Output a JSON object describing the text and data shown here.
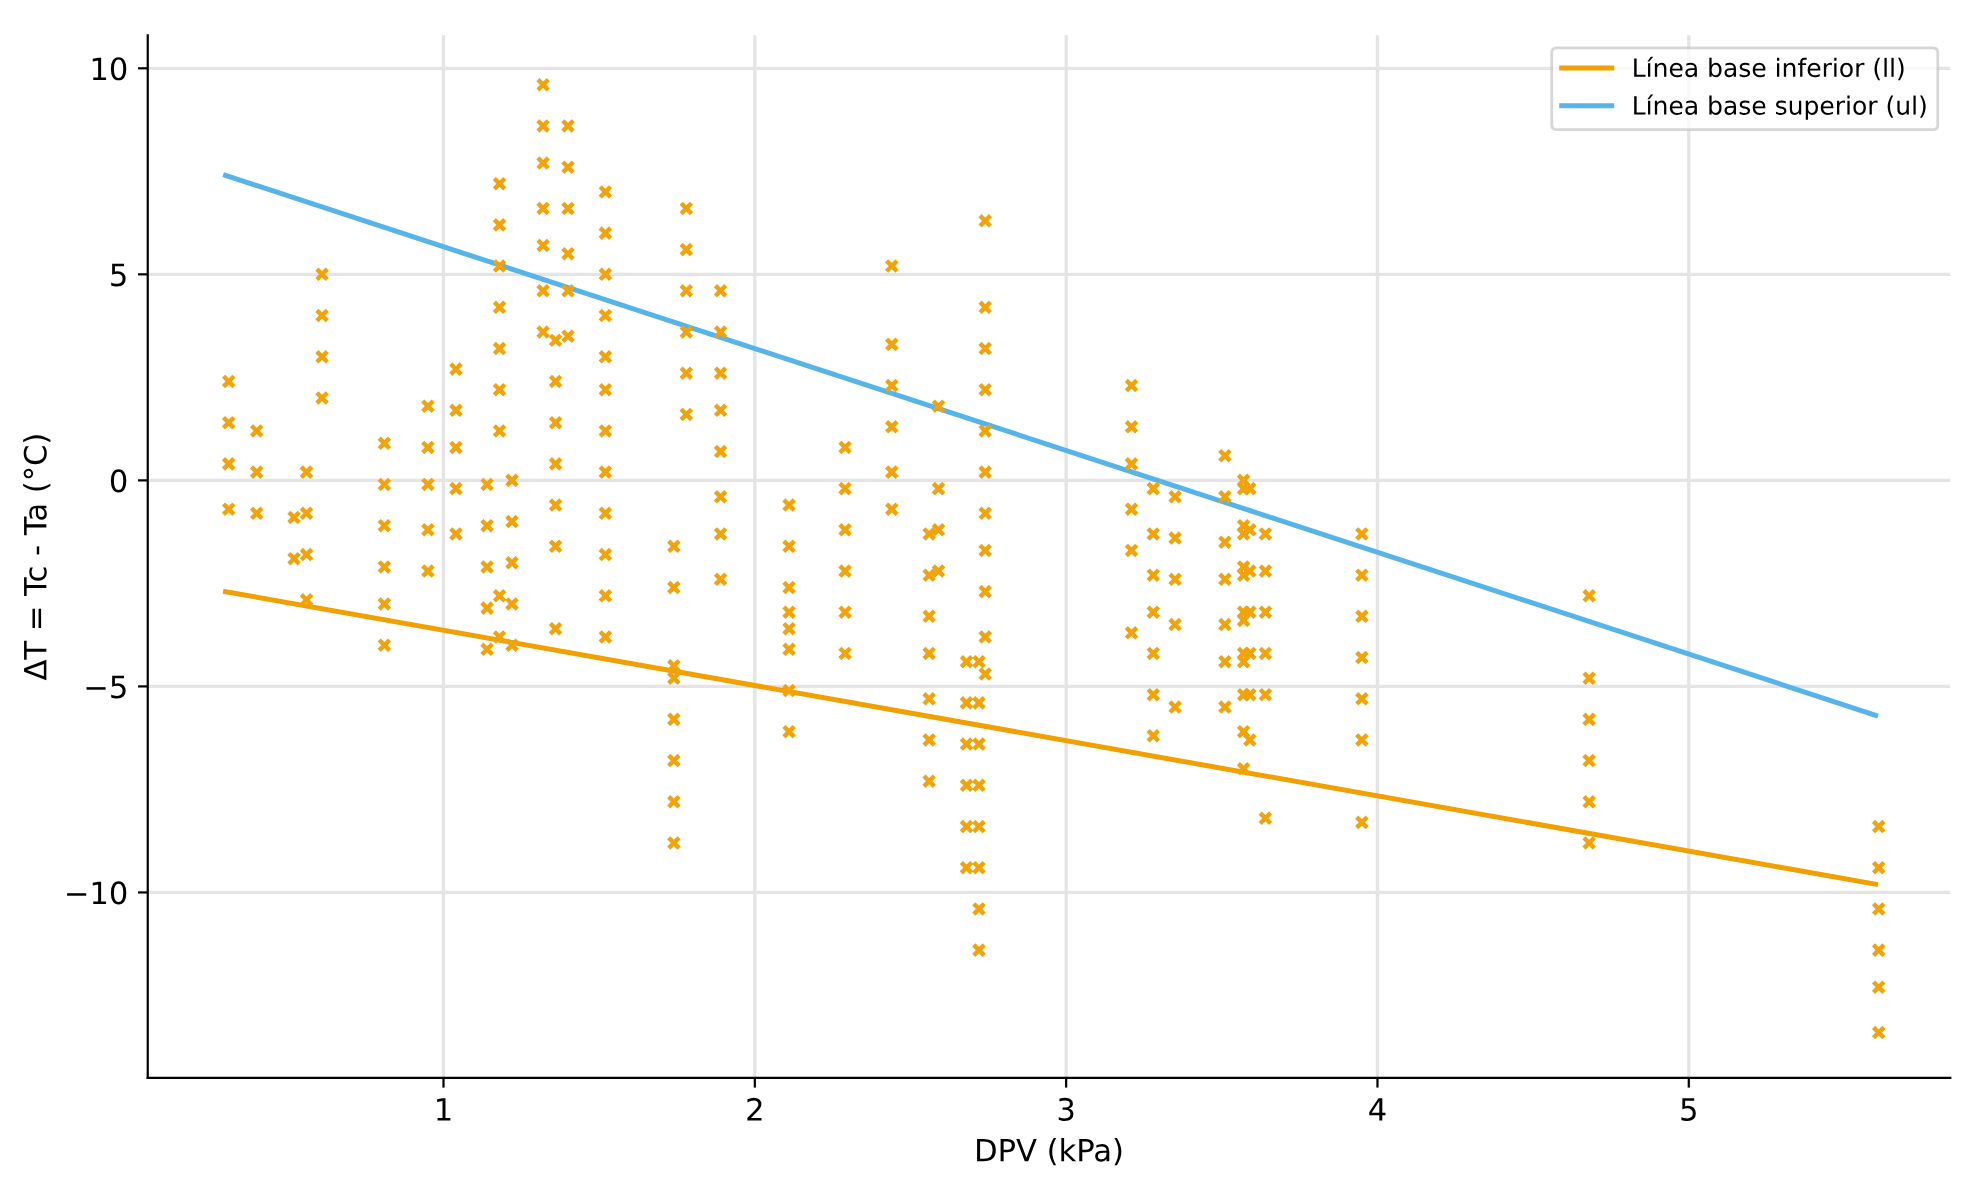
{
  "chart_data": {
    "type": "scatter",
    "xlabel": "DPV (kPa)",
    "ylabel": "ΔT = Tc - Ta (°C)",
    "xlim": [
      0.05,
      5.84
    ],
    "ylim": [
      -14.5,
      10.8
    ],
    "xticks": [
      1,
      2,
      3,
      4,
      5
    ],
    "yticks": [
      {
        "value": -10,
        "label": "−10"
      },
      {
        "value": -5,
        "label": "−5"
      },
      0,
      5,
      10
    ],
    "grid": true,
    "legend": "top right",
    "series": [
      {
        "marker": "cross",
        "color": "#f0a30a",
        "x": [
          0.31,
          0.31,
          0.31,
          0.31,
          0.4,
          0.4,
          0.4,
          0.52,
          0.52,
          0.56,
          0.56,
          0.56,
          0.56,
          0.61,
          0.61,
          0.61,
          0.61,
          0.81,
          0.81,
          0.81,
          0.81,
          0.81,
          0.81,
          0.95,
          0.95,
          0.95,
          0.95,
          0.95,
          1.04,
          1.04,
          1.04,
          1.04,
          1.04,
          1.14,
          1.14,
          1.14,
          1.14,
          1.14,
          1.18,
          1.18,
          1.18,
          1.18,
          1.18,
          1.18,
          1.18,
          1.18,
          1.18,
          1.22,
          1.22,
          1.22,
          1.22,
          1.22,
          1.32,
          1.32,
          1.32,
          1.32,
          1.32,
          1.32,
          1.32,
          1.36,
          1.36,
          1.36,
          1.36,
          1.36,
          1.36,
          1.36,
          1.4,
          1.4,
          1.4,
          1.4,
          1.4,
          1.4,
          1.52,
          1.52,
          1.52,
          1.52,
          1.52,
          1.52,
          1.52,
          1.52,
          1.52,
          1.52,
          1.52,
          1.52,
          1.74,
          1.74,
          1.74,
          1.74,
          1.74,
          1.74,
          1.74,
          1.74,
          1.78,
          1.78,
          1.78,
          1.78,
          1.78,
          1.78,
          1.89,
          1.89,
          1.89,
          1.89,
          1.89,
          1.89,
          1.89,
          1.89,
          2.11,
          2.11,
          2.11,
          2.11,
          2.11,
          2.11,
          2.11,
          2.11,
          2.29,
          2.29,
          2.29,
          2.29,
          2.29,
          2.29,
          2.44,
          2.44,
          2.44,
          2.44,
          2.44,
          2.44,
          2.56,
          2.56,
          2.56,
          2.56,
          2.56,
          2.56,
          2.56,
          2.59,
          2.59,
          2.59,
          2.59,
          2.68,
          2.68,
          2.68,
          2.68,
          2.68,
          2.68,
          2.72,
          2.72,
          2.72,
          2.72,
          2.72,
          2.72,
          2.72,
          2.72,
          2.74,
          2.74,
          2.74,
          2.74,
          2.74,
          2.74,
          2.74,
          2.74,
          2.74,
          2.74,
          2.74,
          3.21,
          3.21,
          3.21,
          3.21,
          3.21,
          3.21,
          3.28,
          3.28,
          3.28,
          3.28,
          3.28,
          3.28,
          3.28,
          3.35,
          3.35,
          3.35,
          3.35,
          3.35,
          3.51,
          3.51,
          3.51,
          3.51,
          3.51,
          3.51,
          3.51,
          3.57,
          3.57,
          3.57,
          3.57,
          3.57,
          3.57,
          3.57,
          3.57,
          3.57,
          3.57,
          3.57,
          3.57,
          3.57,
          3.59,
          3.59,
          3.59,
          3.59,
          3.59,
          3.59,
          3.59,
          3.64,
          3.64,
          3.64,
          3.64,
          3.64,
          3.64,
          3.95,
          3.95,
          3.95,
          3.95,
          3.95,
          3.95,
          3.95,
          4.68,
          4.68,
          4.68,
          4.68,
          4.68,
          4.68,
          5.61,
          5.61,
          5.61,
          5.61,
          5.61,
          5.61
        ],
        "values": [
          2.4,
          1.4,
          0.4,
          -0.7,
          1.2,
          0.2,
          -0.8,
          -0.9,
          -1.9,
          0.2,
          -0.8,
          -1.8,
          -2.9,
          5.0,
          4.0,
          3.0,
          2.0,
          0.9,
          -0.1,
          -1.1,
          -2.1,
          -3.0,
          -4.0,
          1.8,
          0.8,
          -0.1,
          -1.2,
          -2.2,
          2.7,
          1.7,
          0.8,
          -0.2,
          -1.3,
          -0.1,
          -1.1,
          -2.1,
          -3.1,
          -4.1,
          7.2,
          6.2,
          5.2,
          4.2,
          3.2,
          2.2,
          1.2,
          -2.8,
          -3.8,
          0.0,
          -1.0,
          -2.0,
          -3.0,
          -4.0,
          9.6,
          8.6,
          7.7,
          6.6,
          5.7,
          4.6,
          3.6,
          3.4,
          2.4,
          1.4,
          0.4,
          -0.6,
          -1.6,
          -3.6,
          8.6,
          7.6,
          6.6,
          5.5,
          4.6,
          3.5,
          7.0,
          6.0,
          5.0,
          4.0,
          3.0,
          2.2,
          1.2,
          0.2,
          -0.8,
          -1.8,
          -2.8,
          -3.8,
          -1.6,
          -2.6,
          -4.5,
          -4.8,
          -5.8,
          -6.8,
          -7.8,
          -8.8,
          6.6,
          5.6,
          4.6,
          3.6,
          2.6,
          1.6,
          4.6,
          3.6,
          2.6,
          1.7,
          0.7,
          -0.4,
          -1.3,
          -2.4,
          -0.6,
          -1.6,
          -2.6,
          -3.2,
          -3.6,
          -4.1,
          -5.1,
          -6.1,
          0.8,
          -0.2,
          -1.2,
          -2.2,
          -3.2,
          -4.2,
          5.2,
          3.3,
          2.3,
          1.3,
          0.2,
          -0.7,
          -1.3,
          -2.3,
          -3.3,
          -4.2,
          -5.3,
          -6.3,
          -7.3,
          1.8,
          -0.2,
          -1.2,
          -2.2,
          -4.4,
          -5.4,
          -6.4,
          -7.4,
          -8.4,
          -9.4,
          -4.4,
          -5.4,
          -6.4,
          -7.4,
          -8.4,
          -9.4,
          -10.4,
          -11.4,
          6.3,
          4.2,
          3.2,
          2.2,
          1.2,
          0.2,
          -0.8,
          -1.7,
          -2.7,
          -3.8,
          -4.7,
          2.3,
          1.3,
          0.4,
          -0.7,
          -1.7,
          -3.7,
          -0.2,
          -1.3,
          -2.3,
          -3.2,
          -4.2,
          -5.2,
          -6.2,
          -0.4,
          -1.4,
          -2.4,
          -3.5,
          -5.5,
          0.6,
          -0.4,
          -1.5,
          -2.4,
          -3.5,
          -4.4,
          -5.5,
          0.0,
          -0.2,
          -1.1,
          -1.3,
          -2.1,
          -2.3,
          -3.2,
          -3.4,
          -4.2,
          -4.4,
          -5.2,
          -6.1,
          -7.0,
          -0.2,
          -1.2,
          -2.2,
          -3.2,
          -4.2,
          -5.2,
          -6.3,
          -1.3,
          -2.2,
          -3.2,
          -4.2,
          -5.2,
          -8.2,
          -1.3,
          -2.3,
          -3.3,
          -4.3,
          -5.3,
          -6.3,
          -8.3,
          -2.8,
          -4.8,
          -5.8,
          -6.8,
          -7.8,
          -8.8,
          -8.4,
          -9.4,
          -10.4,
          -11.4,
          -12.3,
          -13.4
        ]
      },
      {
        "type": "line",
        "name": "Línea base inferior (ll)",
        "color": "#f0a000",
        "x": [
          0.3,
          5.6
        ],
        "values": [
          -2.7,
          -9.8
        ]
      },
      {
        "type": "line",
        "name": "Línea base superior (ul)",
        "color": "#56b4e9",
        "x": [
          0.3,
          5.6
        ],
        "values": [
          7.4,
          -5.7
        ]
      }
    ]
  }
}
